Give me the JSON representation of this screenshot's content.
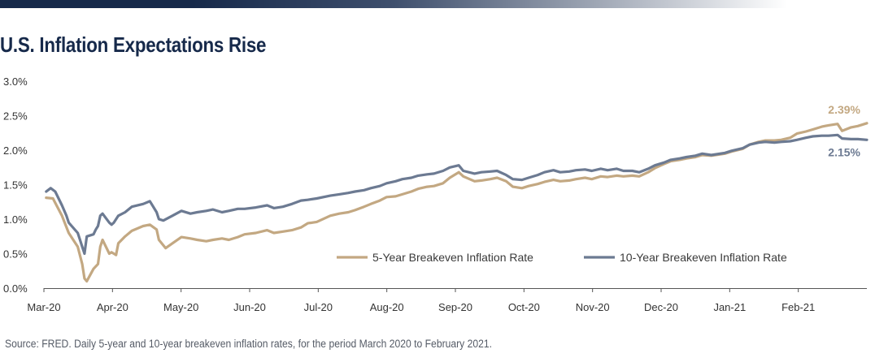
{
  "title": "U.S. Inflation Expectations Rise",
  "source": "Source: FRED. Daily 5-year and 10-year breakeven inflation rates, for the period March 2020 to February 2021.",
  "chart_data": {
    "type": "line",
    "title": "U.S. Inflation Expectations Rise",
    "xlabel": "",
    "ylabel": "",
    "ylim": [
      0,
      3.0
    ],
    "yticks": [
      "0.0%",
      "0.5%",
      "1.0%",
      "1.5%",
      "2.0%",
      "2.5%",
      "3.0%"
    ],
    "xticks": [
      "Mar-20",
      "Apr-20",
      "May-20",
      "Jun-20",
      "Jul-20",
      "Aug-20",
      "Sep-20",
      "Oct-20",
      "Nov-20",
      "Dec-20",
      "Jan-21",
      "Feb-21"
    ],
    "grid": false,
    "legend": "bottom-right",
    "colors": {
      "five_year": "#c3a882",
      "ten_year": "#6c7a92"
    },
    "series": [
      {
        "name": "5-Year Breakeven Inflation Rate",
        "end_label": "2.39%",
        "points": [
          [
            "2020-03-02",
            1.31
          ],
          [
            "2020-03-05",
            1.3
          ],
          [
            "2020-03-09",
            1.05
          ],
          [
            "2020-03-12",
            0.8
          ],
          [
            "2020-03-16",
            0.6
          ],
          [
            "2020-03-18",
            0.35
          ],
          [
            "2020-03-19",
            0.14
          ],
          [
            "2020-03-20",
            0.1
          ],
          [
            "2020-03-23",
            0.28
          ],
          [
            "2020-03-25",
            0.35
          ],
          [
            "2020-03-26",
            0.6
          ],
          [
            "2020-03-27",
            0.7
          ],
          [
            "2020-03-30",
            0.5
          ],
          [
            "2020-03-31",
            0.52
          ],
          [
            "2020-04-02",
            0.48
          ],
          [
            "2020-04-03",
            0.65
          ],
          [
            "2020-04-06",
            0.75
          ],
          [
            "2020-04-09",
            0.83
          ],
          [
            "2020-04-14",
            0.9
          ],
          [
            "2020-04-17",
            0.92
          ],
          [
            "2020-04-20",
            0.85
          ],
          [
            "2020-04-21",
            0.7
          ],
          [
            "2020-04-24",
            0.58
          ],
          [
            "2020-04-27",
            0.65
          ],
          [
            "2020-05-01",
            0.74
          ],
          [
            "2020-05-05",
            0.72
          ],
          [
            "2020-05-08",
            0.7
          ],
          [
            "2020-05-12",
            0.68
          ],
          [
            "2020-05-15",
            0.7
          ],
          [
            "2020-05-19",
            0.72
          ],
          [
            "2020-05-22",
            0.7
          ],
          [
            "2020-05-26",
            0.74
          ],
          [
            "2020-05-29",
            0.78
          ],
          [
            "2020-06-03",
            0.8
          ],
          [
            "2020-06-08",
            0.84
          ],
          [
            "2020-06-11",
            0.8
          ],
          [
            "2020-06-15",
            0.82
          ],
          [
            "2020-06-19",
            0.84
          ],
          [
            "2020-06-23",
            0.88
          ],
          [
            "2020-06-26",
            0.94
          ],
          [
            "2020-06-30",
            0.96
          ],
          [
            "2020-07-06",
            1.05
          ],
          [
            "2020-07-10",
            1.08
          ],
          [
            "2020-07-14",
            1.1
          ],
          [
            "2020-07-17",
            1.13
          ],
          [
            "2020-07-21",
            1.18
          ],
          [
            "2020-07-24",
            1.22
          ],
          [
            "2020-07-28",
            1.27
          ],
          [
            "2020-07-31",
            1.32
          ],
          [
            "2020-08-04",
            1.33
          ],
          [
            "2020-08-07",
            1.36
          ],
          [
            "2020-08-11",
            1.4
          ],
          [
            "2020-08-14",
            1.44
          ],
          [
            "2020-08-18",
            1.47
          ],
          [
            "2020-08-21",
            1.48
          ],
          [
            "2020-08-25",
            1.52
          ],
          [
            "2020-08-28",
            1.6
          ],
          [
            "2020-09-01",
            1.68
          ],
          [
            "2020-09-03",
            1.62
          ],
          [
            "2020-09-08",
            1.55
          ],
          [
            "2020-09-11",
            1.56
          ],
          [
            "2020-09-15",
            1.58
          ],
          [
            "2020-09-18",
            1.6
          ],
          [
            "2020-09-22",
            1.55
          ],
          [
            "2020-09-25",
            1.47
          ],
          [
            "2020-09-29",
            1.45
          ],
          [
            "2020-10-02",
            1.48
          ],
          [
            "2020-10-06",
            1.51
          ],
          [
            "2020-10-09",
            1.54
          ],
          [
            "2020-10-13",
            1.57
          ],
          [
            "2020-10-16",
            1.55
          ],
          [
            "2020-10-20",
            1.56
          ],
          [
            "2020-10-23",
            1.58
          ],
          [
            "2020-10-27",
            1.6
          ],
          [
            "2020-10-30",
            1.58
          ],
          [
            "2020-11-03",
            1.62
          ],
          [
            "2020-11-06",
            1.61
          ],
          [
            "2020-11-10",
            1.63
          ],
          [
            "2020-11-13",
            1.62
          ],
          [
            "2020-11-17",
            1.63
          ],
          [
            "2020-11-20",
            1.62
          ],
          [
            "2020-11-24",
            1.68
          ],
          [
            "2020-11-27",
            1.74
          ],
          [
            "2020-12-01",
            1.8
          ],
          [
            "2020-12-04",
            1.84
          ],
          [
            "2020-12-08",
            1.86
          ],
          [
            "2020-12-11",
            1.88
          ],
          [
            "2020-12-15",
            1.9
          ],
          [
            "2020-12-18",
            1.93
          ],
          [
            "2020-12-22",
            1.92
          ],
          [
            "2020-12-28",
            1.95
          ],
          [
            "2020-12-31",
            1.98
          ],
          [
            "2021-01-05",
            2.02
          ],
          [
            "2021-01-08",
            2.08
          ],
          [
            "2021-01-12",
            2.12
          ],
          [
            "2021-01-15",
            2.14
          ],
          [
            "2021-01-19",
            2.14
          ],
          [
            "2021-01-22",
            2.15
          ],
          [
            "2021-01-26",
            2.18
          ],
          [
            "2021-01-29",
            2.24
          ],
          [
            "2021-02-02",
            2.27
          ],
          [
            "2021-02-05",
            2.3
          ],
          [
            "2021-02-09",
            2.34
          ],
          [
            "2021-02-12",
            2.36
          ],
          [
            "2021-02-16",
            2.38
          ],
          [
            "2021-02-18",
            2.28
          ],
          [
            "2021-02-22",
            2.33
          ],
          [
            "2021-02-25",
            2.35
          ],
          [
            "2021-03-01",
            2.39
          ]
        ]
      },
      {
        "name": "10-Year Breakeven Inflation Rate",
        "end_label": "2.15%",
        "points": [
          [
            "2020-03-02",
            1.4
          ],
          [
            "2020-03-04",
            1.45
          ],
          [
            "2020-03-06",
            1.4
          ],
          [
            "2020-03-09",
            1.2
          ],
          [
            "2020-03-11",
            1.05
          ],
          [
            "2020-03-12",
            0.95
          ],
          [
            "2020-03-16",
            0.8
          ],
          [
            "2020-03-17",
            0.7
          ],
          [
            "2020-03-18",
            0.6
          ],
          [
            "2020-03-19",
            0.5
          ],
          [
            "2020-03-20",
            0.75
          ],
          [
            "2020-03-23",
            0.78
          ],
          [
            "2020-03-24",
            0.85
          ],
          [
            "2020-03-25",
            0.9
          ],
          [
            "2020-03-26",
            1.05
          ],
          [
            "2020-03-27",
            1.08
          ],
          [
            "2020-03-30",
            0.95
          ],
          [
            "2020-03-31",
            0.92
          ],
          [
            "2020-04-01",
            0.95
          ],
          [
            "2020-04-03",
            1.05
          ],
          [
            "2020-04-06",
            1.1
          ],
          [
            "2020-04-09",
            1.18
          ],
          [
            "2020-04-14",
            1.22
          ],
          [
            "2020-04-17",
            1.26
          ],
          [
            "2020-04-20",
            1.1
          ],
          [
            "2020-04-21",
            1.0
          ],
          [
            "2020-04-23",
            0.98
          ],
          [
            "2020-04-27",
            1.05
          ],
          [
            "2020-05-01",
            1.12
          ],
          [
            "2020-05-05",
            1.08
          ],
          [
            "2020-05-08",
            1.1
          ],
          [
            "2020-05-12",
            1.12
          ],
          [
            "2020-05-15",
            1.14
          ],
          [
            "2020-05-19",
            1.1
          ],
          [
            "2020-05-22",
            1.12
          ],
          [
            "2020-05-26",
            1.15
          ],
          [
            "2020-05-29",
            1.15
          ],
          [
            "2020-06-03",
            1.17
          ],
          [
            "2020-06-08",
            1.2
          ],
          [
            "2020-06-11",
            1.16
          ],
          [
            "2020-06-15",
            1.18
          ],
          [
            "2020-06-19",
            1.22
          ],
          [
            "2020-06-23",
            1.27
          ],
          [
            "2020-06-26",
            1.28
          ],
          [
            "2020-06-30",
            1.3
          ],
          [
            "2020-07-06",
            1.34
          ],
          [
            "2020-07-10",
            1.36
          ],
          [
            "2020-07-14",
            1.38
          ],
          [
            "2020-07-17",
            1.4
          ],
          [
            "2020-07-21",
            1.42
          ],
          [
            "2020-07-24",
            1.45
          ],
          [
            "2020-07-28",
            1.48
          ],
          [
            "2020-07-31",
            1.52
          ],
          [
            "2020-08-04",
            1.55
          ],
          [
            "2020-08-07",
            1.58
          ],
          [
            "2020-08-11",
            1.6
          ],
          [
            "2020-08-14",
            1.63
          ],
          [
            "2020-08-18",
            1.65
          ],
          [
            "2020-08-21",
            1.66
          ],
          [
            "2020-08-25",
            1.7
          ],
          [
            "2020-08-28",
            1.75
          ],
          [
            "2020-09-01",
            1.78
          ],
          [
            "2020-09-03",
            1.7
          ],
          [
            "2020-09-08",
            1.66
          ],
          [
            "2020-09-11",
            1.68
          ],
          [
            "2020-09-15",
            1.69
          ],
          [
            "2020-09-18",
            1.7
          ],
          [
            "2020-09-22",
            1.64
          ],
          [
            "2020-09-25",
            1.58
          ],
          [
            "2020-09-29",
            1.57
          ],
          [
            "2020-10-02",
            1.6
          ],
          [
            "2020-10-06",
            1.64
          ],
          [
            "2020-10-09",
            1.68
          ],
          [
            "2020-10-13",
            1.71
          ],
          [
            "2020-10-16",
            1.68
          ],
          [
            "2020-10-20",
            1.69
          ],
          [
            "2020-10-23",
            1.71
          ],
          [
            "2020-10-27",
            1.72
          ],
          [
            "2020-10-30",
            1.7
          ],
          [
            "2020-11-03",
            1.73
          ],
          [
            "2020-11-06",
            1.71
          ],
          [
            "2020-11-10",
            1.73
          ],
          [
            "2020-11-13",
            1.7
          ],
          [
            "2020-11-17",
            1.7
          ],
          [
            "2020-11-20",
            1.68
          ],
          [
            "2020-11-24",
            1.73
          ],
          [
            "2020-11-27",
            1.78
          ],
          [
            "2020-12-01",
            1.82
          ],
          [
            "2020-12-04",
            1.86
          ],
          [
            "2020-12-08",
            1.88
          ],
          [
            "2020-12-11",
            1.9
          ],
          [
            "2020-12-15",
            1.92
          ],
          [
            "2020-12-18",
            1.95
          ],
          [
            "2020-12-22",
            1.93
          ],
          [
            "2020-12-28",
            1.96
          ],
          [
            "2020-12-31",
            1.99
          ],
          [
            "2021-01-05",
            2.03
          ],
          [
            "2021-01-08",
            2.08
          ],
          [
            "2021-01-12",
            2.11
          ],
          [
            "2021-01-15",
            2.12
          ],
          [
            "2021-01-19",
            2.11
          ],
          [
            "2021-01-22",
            2.12
          ],
          [
            "2021-01-26",
            2.13
          ],
          [
            "2021-01-29",
            2.15
          ],
          [
            "2021-02-02",
            2.18
          ],
          [
            "2021-02-05",
            2.2
          ],
          [
            "2021-02-09",
            2.21
          ],
          [
            "2021-02-12",
            2.21
          ],
          [
            "2021-02-16",
            2.22
          ],
          [
            "2021-02-18",
            2.17
          ],
          [
            "2021-02-22",
            2.16
          ],
          [
            "2021-02-25",
            2.16
          ],
          [
            "2021-03-01",
            2.15
          ]
        ]
      }
    ]
  }
}
